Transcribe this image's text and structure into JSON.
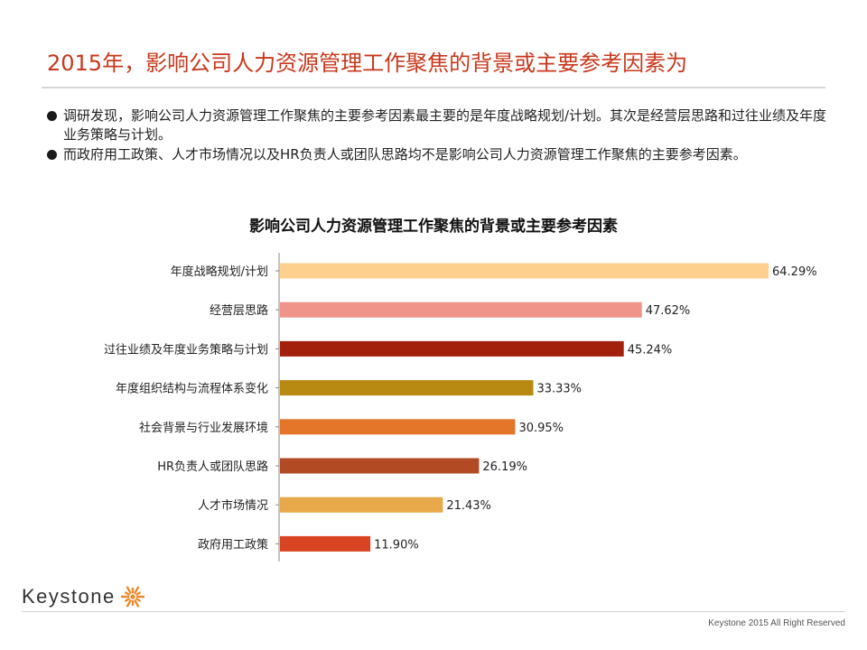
{
  "header": {
    "title": "2015年，影响公司人力资源管理工作聚焦的背景或主要参考因素为"
  },
  "bullets": [
    "调研发现，影响公司人力资源管理工作聚焦的主要参考因素最主要的是年度战略规划/计划。其次是经营层思路和过往业绩及年度业务策略与计划。",
    "而政府用工政策、人才市场情况以及HR负责人或团队思路均不是影响公司人力资源管理工作聚焦的主要参考因素。"
  ],
  "chart_data": {
    "type": "bar",
    "orientation": "horizontal",
    "title": "影响公司人力资源管理工作聚焦的背景或主要参考因素",
    "categories": [
      "年度战略规划/计划",
      "经营层思路",
      "过往业绩及年度业务策略与计划",
      "年度组织结构与流程体系变化",
      "社会背景与行业发展环境",
      "HR负责人或团队思路",
      "人才市场情况",
      "政府用工政策"
    ],
    "values": [
      64.29,
      47.62,
      45.24,
      33.33,
      30.95,
      26.19,
      21.43,
      11.9
    ],
    "value_labels": [
      "64.29%",
      "47.62%",
      "45.24%",
      "33.33%",
      "30.95%",
      "26.19%",
      "21.43%",
      "11.90%"
    ],
    "colors": [
      "#fdd08d",
      "#f0948a",
      "#a3200d",
      "#b88a12",
      "#e4762a",
      "#b24a24",
      "#e8a94a",
      "#d94422"
    ],
    "xlim": [
      0,
      64.29
    ],
    "grid": false,
    "legend": "none"
  },
  "branding": {
    "logo_text": "Keystone",
    "logo_color": "#e98a2c"
  },
  "footer": {
    "copyright": "Keystone 2015 All Right Reserved"
  }
}
